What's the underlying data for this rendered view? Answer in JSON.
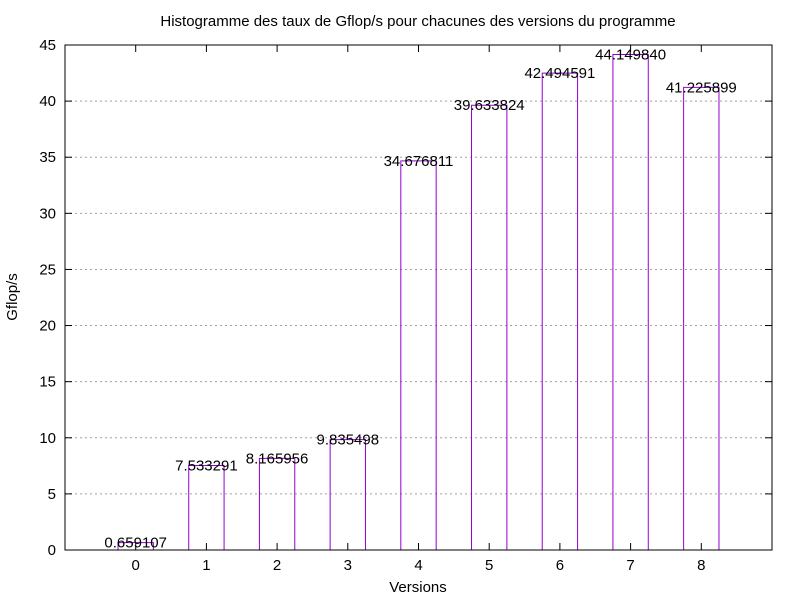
{
  "chart_data": {
    "type": "bar",
    "title": "Histogramme des taux de Gflop/s pour chacunes des versions du programme",
    "xlabel": "Versions",
    "ylabel": "Gflop/s",
    "categories": [
      "0",
      "1",
      "2",
      "3",
      "4",
      "5",
      "6",
      "7",
      "8"
    ],
    "values": [
      0.659107,
      7.533291,
      8.165956,
      9.835498,
      34.676811,
      39.633824,
      42.494591,
      44.14984,
      41.225899
    ],
    "value_labels": [
      "0.659107",
      "7.533291",
      "8.165956",
      "9.835498",
      "34.676811",
      "39.633824",
      "42.494591",
      "44.149840",
      "41.225899"
    ],
    "xlim": [
      -1,
      9
    ],
    "ylim": [
      0,
      45
    ],
    "yticks": [
      0,
      5,
      10,
      15,
      20,
      25,
      30,
      35,
      40,
      45
    ],
    "grid": true,
    "bar_color": "#9400d3"
  }
}
